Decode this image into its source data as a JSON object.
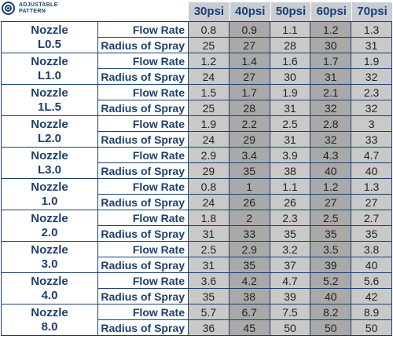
{
  "logo": {
    "line1": "ADJUSTABLE",
    "line2": "PATTERN"
  },
  "pressures": [
    "30psi",
    "40psi",
    "50psi",
    "60psi",
    "70psi"
  ],
  "row_labels": {
    "flow": "Flow Rate",
    "radius": "Radius of Spray"
  },
  "nozzles": [
    {
      "name1": "Nozzle",
      "name2": "L0.5",
      "flow": [
        "0.8",
        "0.9",
        "1.1",
        "1.2",
        "1.3"
      ],
      "radius": [
        "25",
        "27",
        "28",
        "30",
        "31"
      ]
    },
    {
      "name1": "Nozzle",
      "name2": "L1.0",
      "flow": [
        "1.2",
        "1.4",
        "1.6",
        "1.7",
        "1.9"
      ],
      "radius": [
        "24",
        "27",
        "30",
        "31",
        "32"
      ]
    },
    {
      "name1": "Nozzle",
      "name2": "1L.5",
      "flow": [
        "1.5",
        "1.7",
        "1.9",
        "2.1",
        "2.3"
      ],
      "radius": [
        "25",
        "28",
        "31",
        "32",
        "32"
      ]
    },
    {
      "name1": "Nozzle",
      "name2": "L2.0",
      "flow": [
        "1.9",
        "2.2",
        "2.5",
        "2.8",
        "3"
      ],
      "radius": [
        "24",
        "29",
        "31",
        "32",
        "33"
      ]
    },
    {
      "name1": "Nozzle",
      "name2": "L3.0",
      "flow": [
        "2.9",
        "3.4",
        "3.9",
        "4.3",
        "4.7"
      ],
      "radius": [
        "29",
        "35",
        "38",
        "40",
        "40"
      ]
    },
    {
      "name1": "Nozzle",
      "name2": "1.0",
      "flow": [
        "0.8",
        "1",
        "1.1",
        "1.2",
        "1.3"
      ],
      "radius": [
        "24",
        "26",
        "26",
        "27",
        "27"
      ]
    },
    {
      "name1": "Nozzle",
      "name2": "2.0",
      "flow": [
        "1.8",
        "2",
        "2.3",
        "2.5",
        "2.7"
      ],
      "radius": [
        "31",
        "33",
        "35",
        "35",
        "35"
      ]
    },
    {
      "name1": "Nozzle",
      "name2": "3.0",
      "flow": [
        "2.5",
        "2.9",
        "3.2",
        "3.5",
        "3.8"
      ],
      "radius": [
        "31",
        "35",
        "37",
        "39",
        "40"
      ]
    },
    {
      "name1": "Nozzle",
      "name2": "4.0",
      "flow": [
        "3.6",
        "4.2",
        "4.7",
        "5.2",
        "5.6"
      ],
      "radius": [
        "35",
        "38",
        "39",
        "40",
        "42"
      ]
    },
    {
      "name1": "Nozzle",
      "name2": "8.0",
      "flow": [
        "5.7",
        "6.7",
        "7.5",
        "8.2",
        "8.9"
      ],
      "radius": [
        "36",
        "45",
        "50",
        "50",
        "50"
      ]
    }
  ]
}
